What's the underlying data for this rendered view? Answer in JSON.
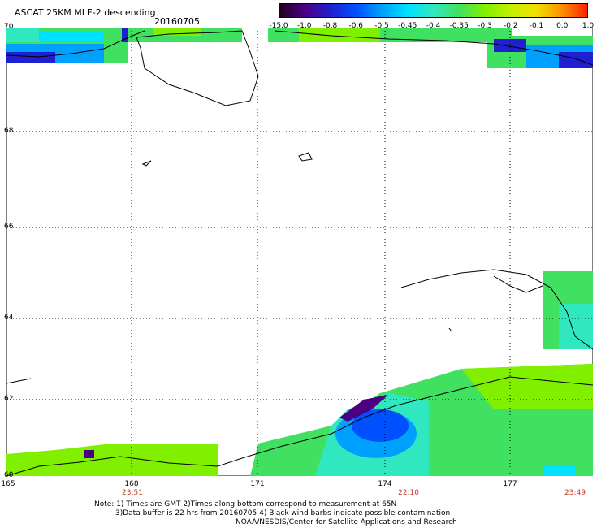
{
  "header": {
    "title": "ASCAT 25KM MLE-2 descending",
    "date": "20160705"
  },
  "colorbar": {
    "labels": [
      "-15.0",
      "-1.0",
      "-0.8",
      "-0.6",
      "-0.5",
      "-0.45",
      "-0.4",
      "-0.35",
      "-0.3",
      "-0.2",
      "-0.1",
      "0.0",
      "1.0"
    ],
    "colors": [
      "#200020",
      "#4b0082",
      "#2020d0",
      "#0050ff",
      "#00a0ff",
      "#00e0ff",
      "#30e8c0",
      "#40e060",
      "#80f000",
      "#c0f000",
      "#f0e000",
      "#ff9000",
      "#ff2000"
    ]
  },
  "axes": {
    "latitudes": [
      "70",
      "68",
      "66",
      "64",
      "62",
      "60"
    ],
    "longitudes": [
      "165",
      "168",
      "171",
      "174",
      "177"
    ],
    "times": [
      "23:51",
      "22:10",
      "23:49"
    ]
  },
  "notes": {
    "line1": "Note: 1) Times are GMT 2)Times along bottom correspond to measurement at 65N",
    "line2": "3)Data buffer is 22 hrs from 20160705 4) Black wind barbs indicate possible contamination",
    "line3": "NOAA/NESDIS/Center for Satellite Applications and Research"
  }
}
